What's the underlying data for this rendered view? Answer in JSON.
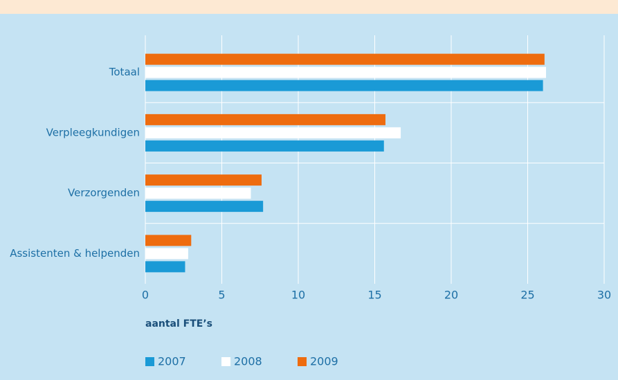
{
  "chart_data": {
    "type": "hbar",
    "x_label": "aantal FTE’s",
    "categories": [
      "Totaal",
      "Verpleegkundigen",
      "Verzorgenden",
      "Assistenten & helpenden"
    ],
    "series": [
      {
        "name": "2007",
        "color": "#1a9ad6",
        "values": [
          26.0,
          15.6,
          7.7,
          2.6
        ]
      },
      {
        "name": "2008",
        "color": "#ffffff",
        "values": [
          26.2,
          16.7,
          6.9,
          2.8
        ]
      },
      {
        "name": "2009",
        "color": "#ee6c0f",
        "values": [
          26.1,
          15.7,
          7.6,
          3.0
        ]
      }
    ],
    "xlim": [
      0,
      30
    ],
    "xticks": [
      0,
      5,
      10,
      15,
      20,
      25,
      30
    ],
    "grid": true
  }
}
